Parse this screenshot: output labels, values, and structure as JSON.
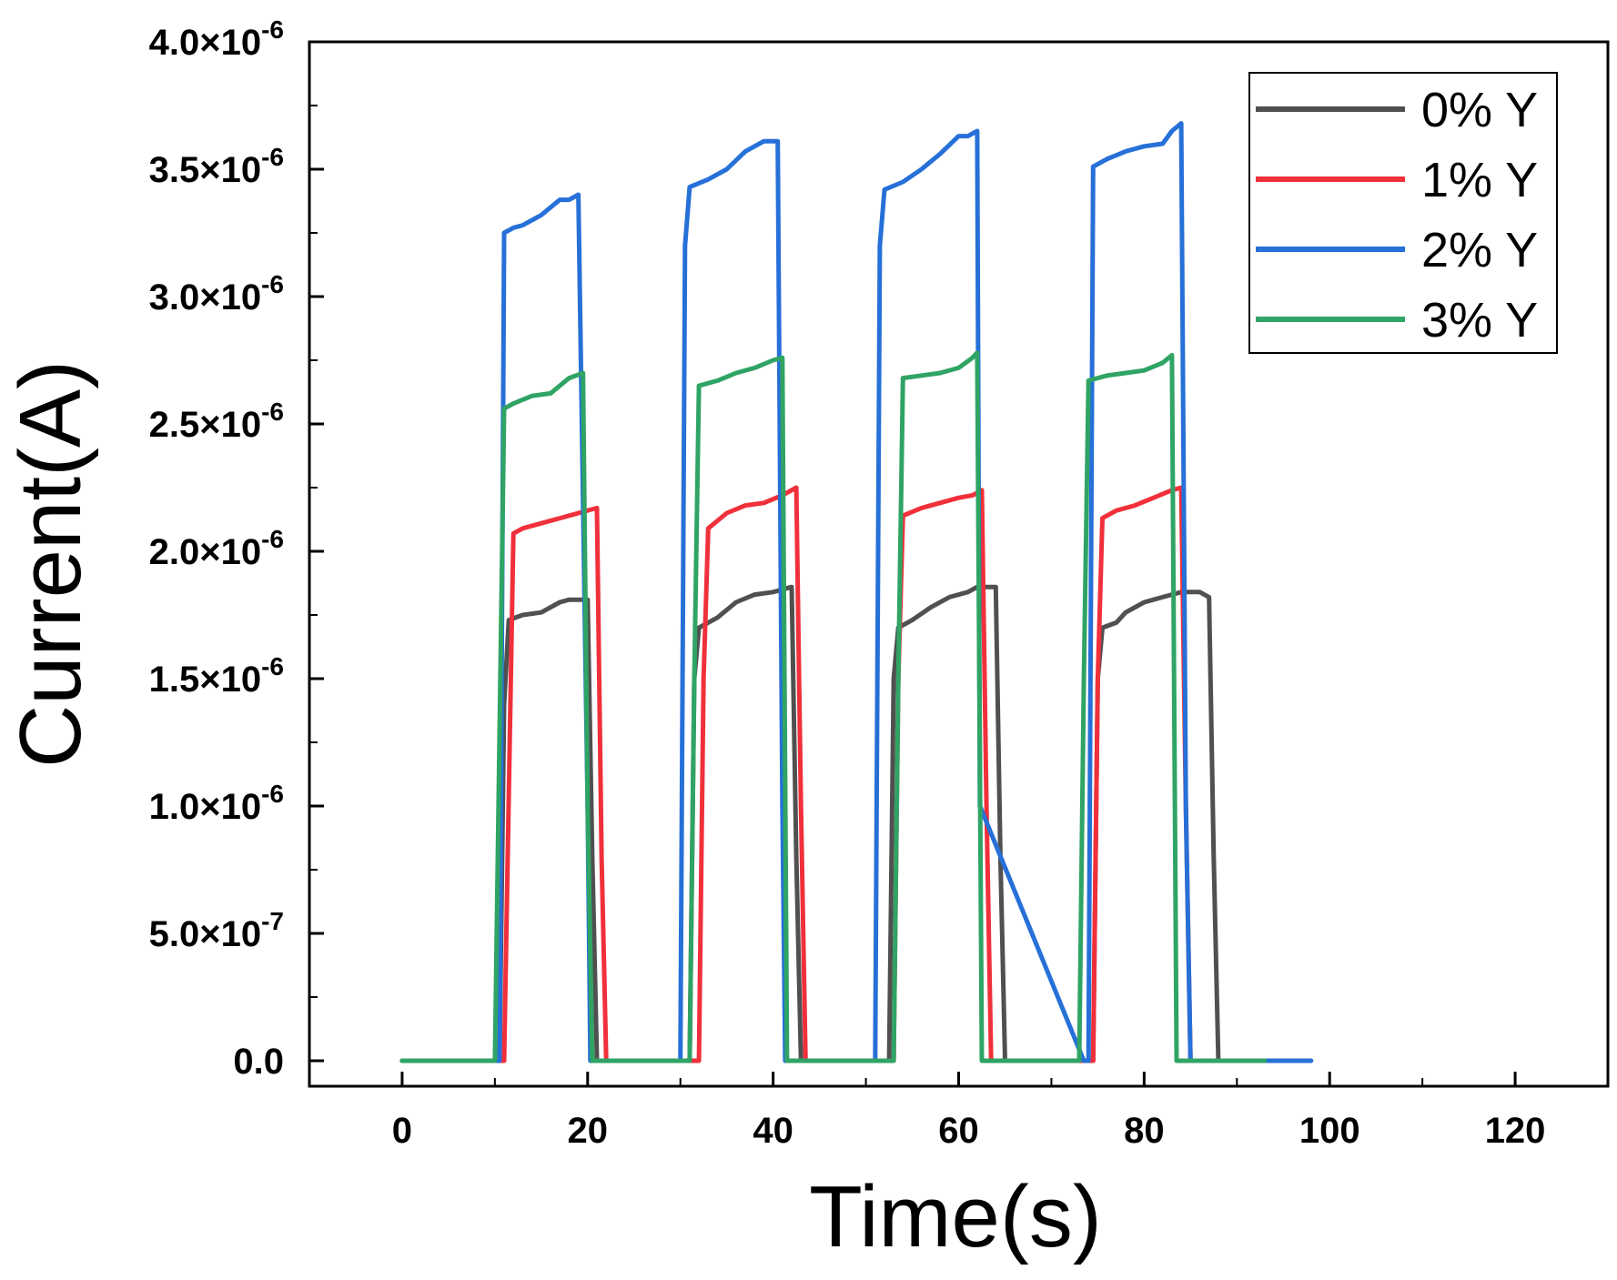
{
  "chart_data": {
    "type": "line",
    "title": "",
    "xlabel": "Time(s)",
    "ylabel": "Current(A)",
    "xlim": [
      -10,
      130
    ],
    "ylim": [
      -1e-07,
      4e-06
    ],
    "xticks": [
      0,
      20,
      40,
      60,
      80,
      100,
      120
    ],
    "xtick_labels": [
      "0",
      "20",
      "40",
      "60",
      "80",
      "100",
      "120"
    ],
    "yticks": [
      0,
      5e-07,
      1e-06,
      1.5e-06,
      2e-06,
      2.5e-06,
      3e-06,
      3.5e-06,
      4e-06
    ],
    "ytick_labels": [
      {
        "mantissa": "0.0",
        "exponent": ""
      },
      {
        "mantissa": "5.0×10",
        "exponent": "-7"
      },
      {
        "mantissa": "1.0×10",
        "exponent": "-6"
      },
      {
        "mantissa": "1.5×10",
        "exponent": "-6"
      },
      {
        "mantissa": "2.0×10",
        "exponent": "-6"
      },
      {
        "mantissa": "2.5×10",
        "exponent": "-6"
      },
      {
        "mantissa": "3.0×10",
        "exponent": "-6"
      },
      {
        "mantissa": "3.5×10",
        "exponent": "-6"
      },
      {
        "mantissa": "4.0×10",
        "exponent": "-6"
      }
    ],
    "grid": false,
    "legend_position": "top-right",
    "series": [
      {
        "name": "0% Y",
        "color": "#505050",
        "x": [
          0,
          10.5,
          11,
          11.5,
          13,
          15,
          17,
          18,
          20,
          20.5,
          21,
          31,
          31.5,
          32,
          34,
          36,
          38,
          40,
          42,
          42.5,
          43,
          52.5,
          53,
          53.5,
          55,
          57,
          59,
          61,
          62,
          64,
          64.5,
          65,
          74.5,
          75,
          75.5,
          77,
          78,
          80,
          82,
          84,
          86,
          87,
          87.5,
          88,
          93
        ],
        "y": [
          0,
          0,
          1.4e-06,
          1.73e-06,
          1.75e-06,
          1.76e-06,
          1.8e-06,
          1.81e-06,
          1.81e-06,
          8e-07,
          0,
          0,
          1.5e-06,
          1.7e-06,
          1.74e-06,
          1.8e-06,
          1.83e-06,
          1.84e-06,
          1.86e-06,
          8e-07,
          0,
          0,
          1.5e-06,
          1.7e-06,
          1.73e-06,
          1.78e-06,
          1.82e-06,
          1.84e-06,
          1.86e-06,
          1.86e-06,
          8e-07,
          0,
          0,
          1.5e-06,
          1.7e-06,
          1.72e-06,
          1.76e-06,
          1.8e-06,
          1.82e-06,
          1.84e-06,
          1.84e-06,
          1.82e-06,
          8e-07,
          0,
          0
        ]
      },
      {
        "name": "1% Y",
        "color": "#f0303a",
        "x": [
          0,
          10.5,
          11,
          12,
          13,
          15,
          17,
          19,
          21,
          21.5,
          22,
          32,
          32.5,
          33,
          35,
          37,
          39,
          41,
          42.5,
          43,
          43.5,
          53,
          53.5,
          54,
          56,
          58,
          60,
          61.5,
          62.5,
          63,
          63.5,
          74.5,
          75,
          75.5,
          77,
          79,
          81,
          83,
          84,
          84.5,
          85,
          93
        ],
        "y": [
          0,
          0,
          0,
          2.07e-06,
          2.09e-06,
          2.11e-06,
          2.13e-06,
          2.15e-06,
          2.17e-06,
          8e-07,
          0,
          0,
          1.5e-06,
          2.09e-06,
          2.15e-06,
          2.18e-06,
          2.19e-06,
          2.22e-06,
          2.25e-06,
          1e-06,
          0,
          0,
          1.5e-06,
          2.14e-06,
          2.17e-06,
          2.19e-06,
          2.21e-06,
          2.22e-06,
          2.24e-06,
          1e-06,
          0,
          0,
          1.5e-06,
          2.13e-06,
          2.16e-06,
          2.18e-06,
          2.21e-06,
          2.24e-06,
          2.25e-06,
          1e-06,
          0,
          0
        ]
      },
      {
        "name": "2% Y",
        "color": "#2670d8",
        "x": [
          0,
          10.5,
          11,
          12,
          13,
          15,
          17,
          18,
          19,
          20,
          20.3,
          30,
          30.5,
          31,
          33,
          35,
          37,
          39,
          40.5,
          41,
          41.3,
          51,
          51.5,
          52,
          54,
          56,
          58,
          60,
          61,
          62,
          62.3,
          73.5,
          74,
          74.5,
          76,
          78,
          80,
          82,
          83,
          84,
          84.5,
          85,
          98
        ],
        "y": [
          0,
          0,
          3.25e-06,
          3.27e-06,
          3.28e-06,
          3.32e-06,
          3.38e-06,
          3.38e-06,
          3.4e-06,
          1e-06,
          0,
          0,
          3.2e-06,
          3.43e-06,
          3.46e-06,
          3.5e-06,
          3.57e-06,
          3.61e-06,
          3.61e-06,
          1e-06,
          0,
          0,
          3.2e-06,
          3.42e-06,
          3.45e-06,
          3.5e-06,
          3.56e-06,
          3.63e-06,
          3.63e-06,
          3.65e-06,
          1e-06,
          0,
          0,
          3.51e-06,
          3.54e-06,
          3.57e-06,
          3.59e-06,
          3.6e-06,
          3.65e-06,
          3.68e-06,
          1e-06,
          0,
          0
        ]
      },
      {
        "name": "3% Y",
        "color": "#2fa464",
        "x": [
          0,
          10,
          11,
          12,
          14,
          16,
          18,
          19.5,
          20,
          20.5,
          31,
          31.5,
          32,
          34,
          36,
          38,
          40,
          41,
          41.5,
          53,
          53.5,
          54,
          56,
          58,
          60,
          61.5,
          62,
          62.5,
          73,
          73.5,
          74,
          76,
          78,
          80,
          82,
          83,
          83.5,
          93
        ],
        "y": [
          0,
          0,
          2.56e-06,
          2.58e-06,
          2.61e-06,
          2.62e-06,
          2.68e-06,
          2.7e-06,
          1e-06,
          0,
          0,
          1.5e-06,
          2.65e-06,
          2.67e-06,
          2.7e-06,
          2.72e-06,
          2.75e-06,
          2.76e-06,
          0,
          0,
          1.5e-06,
          2.68e-06,
          2.69e-06,
          2.7e-06,
          2.72e-06,
          2.76e-06,
          2.78e-06,
          0,
          0,
          1.5e-06,
          2.67e-06,
          2.69e-06,
          2.7e-06,
          2.71e-06,
          2.74e-06,
          2.77e-06,
          0,
          0
        ]
      }
    ]
  }
}
